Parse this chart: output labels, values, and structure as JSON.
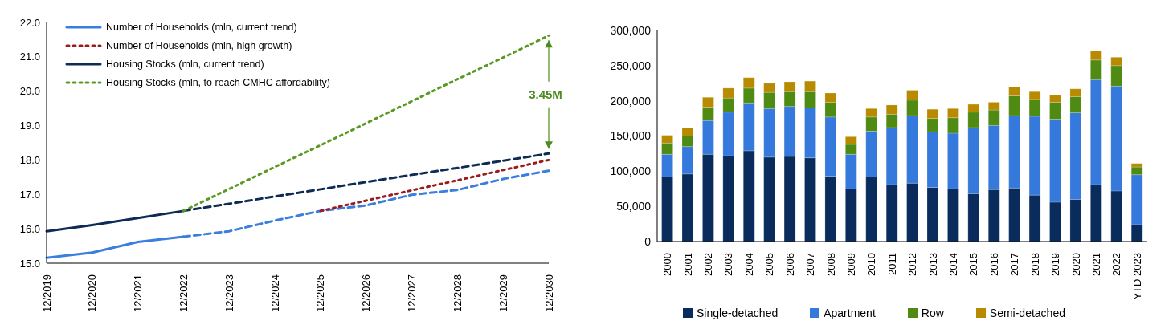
{
  "chart_data": [
    {
      "type": "line",
      "categories": [
        "12/2019",
        "12/2020",
        "12/2021",
        "12/2022",
        "12/2023",
        "12/2024",
        "12/2025",
        "12/2026",
        "12/2027",
        "12/2028",
        "12/2029",
        "12/2030"
      ],
      "series": [
        {
          "name": "Number of Households (mln, current trend)",
          "color": "#3a7ee0",
          "line_style": "solid",
          "values": [
            15.16,
            15.31,
            15.62,
            15.77,
            null,
            null,
            null,
            null,
            null,
            null,
            null,
            null
          ]
        },
        {
          "name": "Number of Households (mln, high growth)",
          "color": "#9b1c1c",
          "line_style": "dotted",
          "values": [
            null,
            null,
            null,
            null,
            null,
            null,
            16.52,
            16.82,
            17.12,
            17.41,
            17.71,
            18.0
          ]
        },
        {
          "name": "Housing Stocks (mln, current trend)",
          "color": "#0d2b55",
          "line_style": "solid",
          "values": [
            15.93,
            16.11,
            16.31,
            16.52,
            null,
            null,
            null,
            null,
            null,
            null,
            null,
            null
          ]
        },
        {
          "name": "Housing Stocks (mln, to reach CMHC affordability)",
          "color": "#5a9a22",
          "line_style": "dotted",
          "values": [
            null,
            null,
            null,
            16.52,
            17.16,
            17.8,
            18.43,
            19.07,
            19.71,
            20.35,
            20.98,
            21.62
          ]
        },
        {
          "color": "#3a7ee0",
          "line_style": "dashed",
          "values": [
            null,
            null,
            null,
            15.77,
            15.93,
            16.24,
            16.52,
            16.68,
            16.99,
            17.13,
            17.45,
            17.69
          ]
        },
        {
          "color": "#0d2b55",
          "line_style": "dashed",
          "values": [
            null,
            null,
            null,
            16.52,
            16.73,
            16.94,
            17.15,
            17.36,
            17.57,
            17.77,
            17.98,
            18.19
          ]
        }
      ],
      "ylim": [
        15,
        22
      ],
      "yticks": [
        {
          "value": 15,
          "label": "15.0"
        },
        {
          "value": 16,
          "label": "16.0"
        },
        {
          "value": 17,
          "label": "17.0"
        },
        {
          "value": 18,
          "label": "18.0"
        },
        {
          "value": 19,
          "label": "19.0"
        },
        {
          "value": 20,
          "label": "20.0"
        },
        {
          "value": 21,
          "label": "21.0"
        },
        {
          "value": 22,
          "label": "22.0"
        }
      ],
      "grid": false,
      "legend": "top left",
      "marker": "none",
      "annotations": [
        "3.45M"
      ]
    },
    {
      "type": "bar",
      "stacked": true,
      "categories": [
        "2000",
        "2001",
        "2002",
        "2003",
        "2004",
        "2005",
        "2006",
        "2007",
        "2008",
        "2009",
        "2010",
        "2011",
        "2012",
        "2013",
        "2014",
        "2015",
        "2016",
        "2017",
        "2018",
        "2019",
        "2020",
        "2021",
        "2022",
        "YTD 2023"
      ],
      "series": [
        {
          "name": "Single-detached",
          "color": "#0a2c5c",
          "values": [
            92000,
            96000,
            124000,
            122000,
            129000,
            120000,
            121000,
            119000,
            93000,
            75000,
            92000,
            81000,
            83000,
            77000,
            75000,
            68000,
            74000,
            76000,
            66000,
            56000,
            60000,
            81000,
            72000,
            24000
          ]
        },
        {
          "name": "Apartment",
          "color": "#3579dc",
          "values": [
            32000,
            39000,
            48000,
            62000,
            68000,
            69000,
            71000,
            71000,
            84000,
            49000,
            65000,
            81000,
            96000,
            79000,
            79000,
            94000,
            91000,
            103000,
            112000,
            118000,
            123000,
            149000,
            149000,
            71000
          ]
        },
        {
          "name": "Row",
          "color": "#4f8a12",
          "values": [
            16000,
            15000,
            19000,
            20000,
            21000,
            23000,
            21000,
            23000,
            21000,
            14000,
            20000,
            19000,
            22000,
            19000,
            22000,
            22000,
            22000,
            28000,
            24000,
            24000,
            23000,
            28000,
            29000,
            11000
          ]
        },
        {
          "name": "Semi-detached",
          "color": "#b88a00",
          "values": [
            11000,
            12000,
            14000,
            14000,
            15000,
            13000,
            14000,
            15000,
            13000,
            11000,
            12000,
            13000,
            14000,
            13000,
            13000,
            11000,
            11000,
            13000,
            11000,
            10000,
            11000,
            13000,
            12000,
            5000
          ]
        }
      ],
      "ylim": [
        0,
        300000
      ],
      "yticks": [
        0,
        {
          "value": 50000,
          "label": "50,000"
        },
        {
          "value": 100000,
          "label": "100,000"
        },
        {
          "value": 150000,
          "label": "150,000"
        },
        {
          "value": 200000,
          "label": "200,000"
        },
        {
          "value": 250000,
          "label": "250,000"
        },
        {
          "value": 300000,
          "label": "300,000"
        }
      ],
      "grid": false,
      "legend": "bottom"
    }
  ]
}
